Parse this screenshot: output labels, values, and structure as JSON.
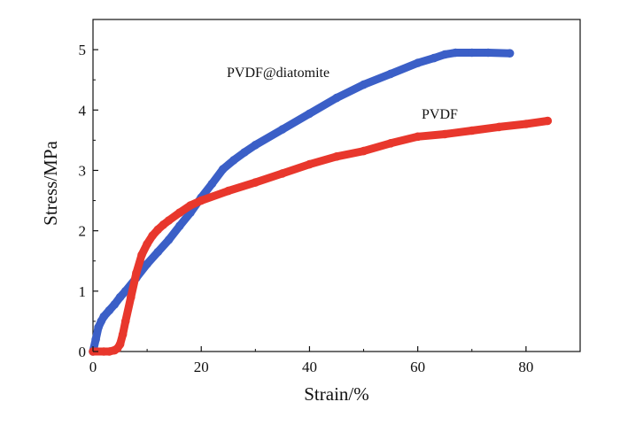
{
  "chart_data": {
    "type": "line",
    "xlabel": "Strain/%",
    "ylabel": "Stress/MPa",
    "xlim": [
      0,
      90
    ],
    "ylim": [
      0,
      5.5
    ],
    "xticks": [
      "0",
      "20",
      "40",
      "60",
      "80"
    ],
    "yticks": [
      "0",
      "1",
      "2",
      "3",
      "4",
      "5"
    ],
    "grid": false,
    "annotations": [
      "PVDF@diatomite",
      "PVDF"
    ],
    "series": [
      {
        "name": "PVDF@diatomite",
        "color": "#3b5fc7",
        "x": [
          0,
          0.5,
          1,
          1.5,
          2,
          3,
          4,
          5,
          6,
          8,
          10,
          12,
          14,
          16,
          18,
          20,
          22,
          24,
          26,
          28,
          30,
          35,
          40,
          45,
          50,
          55,
          60,
          63,
          65,
          67,
          70,
          73,
          77
        ],
        "y": [
          0,
          0.2,
          0.4,
          0.5,
          0.58,
          0.68,
          0.78,
          0.9,
          1.0,
          1.22,
          1.45,
          1.65,
          1.85,
          2.08,
          2.3,
          2.55,
          2.78,
          3.02,
          3.17,
          3.3,
          3.42,
          3.68,
          3.94,
          4.2,
          4.42,
          4.6,
          4.78,
          4.86,
          4.92,
          4.95,
          4.95,
          4.95,
          4.94
        ]
      },
      {
        "name": "PVDF",
        "color": "#e8372c",
        "x": [
          0,
          2,
          3,
          4,
          4.5,
          5,
          5.5,
          6,
          7,
          8,
          9,
          10,
          11,
          12,
          13,
          14,
          16,
          18,
          20,
          25,
          30,
          35,
          40,
          45,
          50,
          55,
          60,
          65,
          70,
          75,
          80,
          84
        ],
        "y": [
          0,
          0,
          0,
          0.02,
          0.05,
          0.12,
          0.28,
          0.5,
          0.9,
          1.3,
          1.6,
          1.78,
          1.92,
          2.02,
          2.1,
          2.17,
          2.3,
          2.42,
          2.5,
          2.66,
          2.8,
          2.95,
          3.1,
          3.23,
          3.32,
          3.45,
          3.56,
          3.6,
          3.66,
          3.72,
          3.77,
          3.82
        ]
      }
    ]
  }
}
